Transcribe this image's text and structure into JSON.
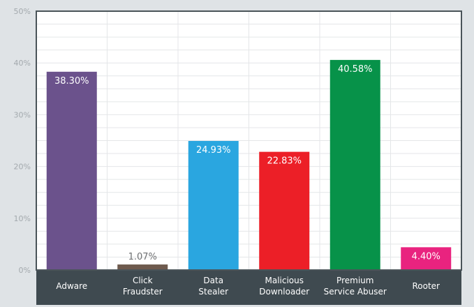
{
  "chart_data": {
    "type": "bar",
    "title": "",
    "xlabel": "",
    "ylabel": "",
    "ylim": [
      0,
      50
    ],
    "yticks": [
      0,
      10,
      20,
      30,
      40,
      50
    ],
    "ytick_labels": [
      "0%",
      "10%",
      "20%",
      "30%",
      "40%",
      "50%"
    ],
    "grid": true,
    "legend": "none",
    "categories": [
      [
        "Adware"
      ],
      [
        "Click",
        "Fraudster"
      ],
      [
        "Data",
        "Stealer"
      ],
      [
        "Malicious",
        "Downloader"
      ],
      [
        "Premium",
        "Service Abuser"
      ],
      [
        "Rooter"
      ]
    ],
    "values": [
      38.3,
      1.07,
      24.93,
      22.83,
      40.58,
      4.4
    ],
    "data_labels": [
      "38.30%",
      "1.07%",
      "24.93%",
      "22.83%",
      "40.58%",
      "4.40%"
    ],
    "colors": [
      "#6b528c",
      "#6e5a4e",
      "#2aa6e0",
      "#ec1f27",
      "#079249",
      "#e9237f"
    ],
    "label_colors": [
      "#ffffff",
      "#6d6f71",
      "#ffffff",
      "#ffffff",
      "#ffffff",
      "#ffffff"
    ],
    "plot_background": "#ffffff",
    "axis_band_color": "#3f4a50",
    "frame_color": "#4a5459"
  }
}
